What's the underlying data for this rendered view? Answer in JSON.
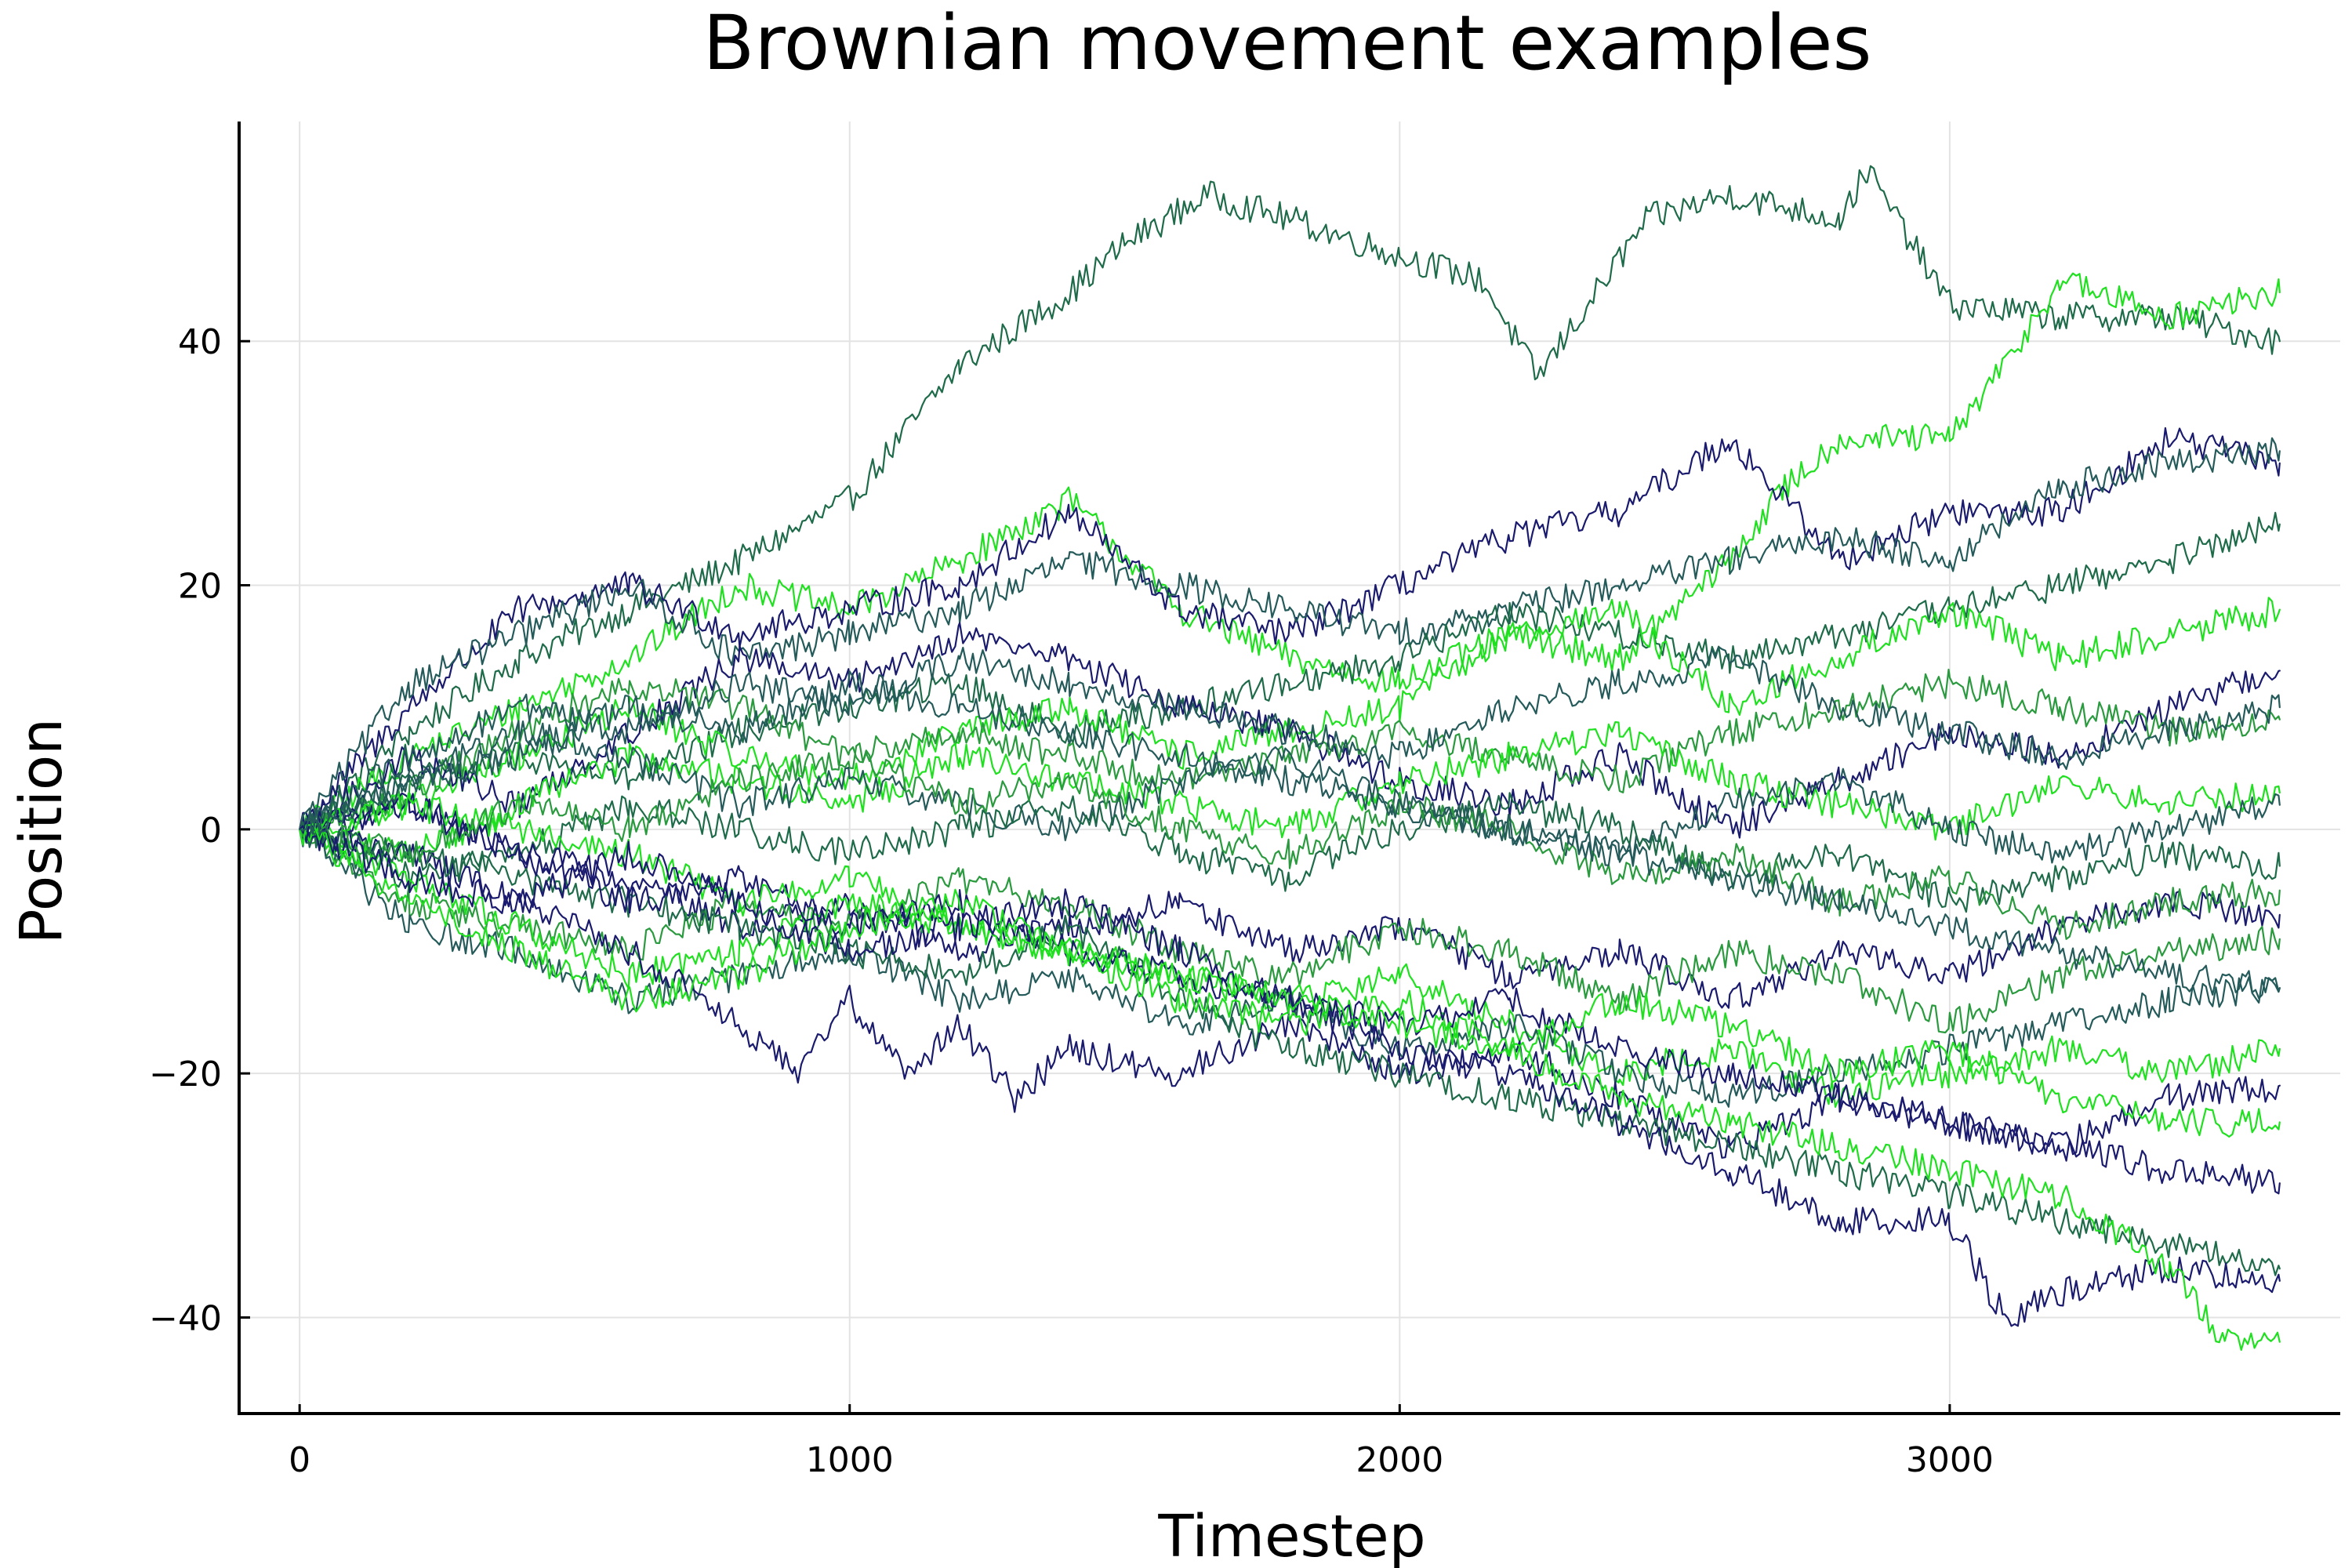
{
  "chart_data": {
    "type": "line",
    "title": "Brownian movement examples",
    "xlabel": "Timestep",
    "ylabel": "Position",
    "xlim": [
      -110,
      3710
    ],
    "ylim": [
      -48,
      58
    ],
    "xticks": [
      0,
      1000,
      2000,
      3000
    ],
    "yticks": [
      -40,
      -20,
      0,
      20,
      40
    ],
    "xtick_labels": [
      "0",
      "1000",
      "2000",
      "3000"
    ],
    "ytick_labels": [
      "−40",
      "−20",
      "0",
      "20",
      "40"
    ],
    "grid": true,
    "legend": "none",
    "colors": {
      "navy": "#1a1a6e",
      "darkgreen": "#1e6b4a",
      "teal": "#245a5a",
      "green": "#2a9a3e",
      "bright": "#1fe01f"
    },
    "series": [
      {
        "color": "#1e6b4a",
        "x": [
          0,
          200,
          400,
          600,
          800,
          1000,
          1200,
          1400,
          1500,
          1650,
          1800,
          2000,
          2150,
          2250,
          2450,
          2600,
          2800,
          2850,
          3000,
          3200,
          3400,
          3600
        ],
        "y": [
          0,
          8,
          14,
          18,
          22,
          27,
          38,
          44,
          48,
          52,
          50,
          47,
          45,
          37,
          50,
          52,
          50,
          54,
          43,
          42,
          42,
          40
        ]
      },
      {
        "color": "#1fe01f",
        "x": [
          0,
          200,
          400,
          600,
          800,
          1000,
          1200,
          1400,
          1600,
          1800,
          2000,
          2200,
          2400,
          2600,
          2700,
          2800,
          3000,
          3100,
          3200,
          3400,
          3600
        ],
        "y": [
          0,
          6,
          10,
          14,
          20,
          18,
          22,
          27,
          18,
          14,
          12,
          16,
          14,
          22,
          28,
          32,
          32,
          38,
          45,
          42,
          44
        ]
      },
      {
        "color": "#1a1a6e",
        "x": [
          0,
          200,
          400,
          600,
          800,
          1000,
          1200,
          1400,
          1600,
          1800,
          2000,
          2200,
          2400,
          2600,
          2800,
          3000,
          3200,
          3400,
          3600
        ],
        "y": [
          0,
          10,
          18,
          20,
          16,
          18,
          20,
          26,
          18,
          16,
          20,
          24,
          26,
          32,
          22,
          26,
          26,
          32,
          30
        ]
      },
      {
        "color": "#245a5a",
        "x": [
          0,
          200,
          400,
          600,
          800,
          1000,
          1200,
          1400,
          1600,
          1800,
          2000,
          2200,
          2400,
          2600,
          2800,
          3000,
          3200,
          3400,
          3600
        ],
        "y": [
          0,
          12,
          16,
          20,
          14,
          16,
          18,
          22,
          20,
          18,
          16,
          18,
          20,
          22,
          24,
          22,
          28,
          30,
          31
        ]
      },
      {
        "color": "#1e6b4a",
        "x": [
          0,
          200,
          400,
          600,
          800,
          1000,
          1200,
          1400,
          1600,
          1800,
          2000,
          2200,
          2400,
          2600,
          2800,
          3000,
          3200,
          3400,
          3600
        ],
        "y": [
          0,
          4,
          6,
          4,
          8,
          10,
          12,
          8,
          10,
          12,
          14,
          18,
          16,
          14,
          16,
          18,
          20,
          22,
          25
        ]
      },
      {
        "color": "#1fe01f",
        "x": [
          0,
          200,
          400,
          600,
          800,
          1000,
          1200,
          1400,
          1600,
          1800,
          2000,
          2200,
          2400,
          2600,
          2800,
          3000,
          3200,
          3400,
          3600
        ],
        "y": [
          0,
          2,
          6,
          10,
          6,
          4,
          8,
          10,
          6,
          8,
          10,
          16,
          18,
          10,
          14,
          18,
          14,
          16,
          18
        ]
      },
      {
        "color": "#1a1a6e",
        "x": [
          0,
          200,
          400,
          600,
          800,
          1000,
          1200,
          1400,
          1600,
          1800,
          2000,
          2200,
          2400,
          2600,
          2800,
          3000,
          3200,
          3400,
          3600
        ],
        "y": [
          0,
          6,
          2,
          8,
          14,
          12,
          16,
          14,
          10,
          8,
          4,
          2,
          6,
          0,
          4,
          8,
          6,
          10,
          13
        ]
      },
      {
        "color": "#2a9a3e",
        "x": [
          0,
          200,
          400,
          600,
          800,
          1000,
          1200,
          1400,
          1600,
          1800,
          2000,
          2200,
          2400,
          2600,
          2800,
          3000,
          3200,
          3400,
          3600
        ],
        "y": [
          0,
          3,
          8,
          12,
          10,
          6,
          8,
          6,
          4,
          6,
          8,
          6,
          4,
          8,
          10,
          12,
          10,
          8,
          9
        ]
      },
      {
        "color": "#1fe01f",
        "x": [
          0,
          200,
          400,
          600,
          800,
          1000,
          1200,
          1400,
          1600,
          1800,
          2000,
          2200,
          2400,
          2600,
          2800,
          3000,
          3200,
          3400,
          3600
        ],
        "y": [
          0,
          -2,
          2,
          6,
          4,
          2,
          6,
          4,
          2,
          0,
          4,
          6,
          8,
          4,
          2,
          0,
          4,
          2,
          3
        ]
      },
      {
        "color": "#245a5a",
        "x": [
          0,
          200,
          400,
          600,
          800,
          1000,
          1200,
          1400,
          1600,
          1800,
          2000,
          2200,
          2400,
          2600,
          2800,
          3000,
          3200,
          3400,
          3600
        ],
        "y": [
          0,
          4,
          8,
          6,
          2,
          4,
          2,
          0,
          4,
          6,
          2,
          0,
          -2,
          2,
          4,
          0,
          -2,
          0,
          2
        ]
      },
      {
        "color": "#1e6b4a",
        "x": [
          0,
          200,
          400,
          600,
          800,
          1000,
          1200,
          1400,
          1600,
          1800,
          2000,
          2200,
          2400,
          2600,
          2800,
          3000,
          3200,
          3400,
          3600
        ],
        "y": [
          0,
          -4,
          -2,
          2,
          0,
          -2,
          0,
          2,
          -2,
          -4,
          0,
          2,
          0,
          -4,
          -2,
          -6,
          -4,
          -2,
          -3
        ]
      },
      {
        "color": "#1a1a6e",
        "x": [
          0,
          200,
          400,
          600,
          800,
          1000,
          1200,
          1400,
          1600,
          1800,
          2000,
          2200,
          2400,
          2600,
          2800,
          3000,
          3200,
          3400,
          3600
        ],
        "y": [
          0,
          2,
          -2,
          -4,
          -8,
          -6,
          -10,
          -8,
          -6,
          -10,
          -8,
          -12,
          -10,
          -14,
          -10,
          -12,
          -8,
          -6,
          -7
        ]
      },
      {
        "color": "#2a9a3e",
        "x": [
          0,
          200,
          400,
          600,
          800,
          1000,
          1200,
          1400,
          1600,
          1800,
          2000,
          2200,
          2400,
          2600,
          2800,
          3000,
          3200,
          3400,
          3600
        ],
        "y": [
          0,
          -6,
          -8,
          -10,
          -6,
          -8,
          -4,
          -6,
          -10,
          -12,
          -8,
          -10,
          -14,
          -10,
          -12,
          -16,
          -12,
          -10,
          -9
        ]
      },
      {
        "color": "#1fe01f",
        "x": [
          0,
          200,
          400,
          600,
          800,
          1000,
          1200,
          1400,
          1600,
          1800,
          2000,
          2200,
          2400,
          2600,
          2800,
          3000,
          3200,
          3400,
          3600
        ],
        "y": [
          0,
          -4,
          -8,
          -12,
          -10,
          -6,
          -8,
          -10,
          -12,
          -14,
          -12,
          -16,
          -20,
          -18,
          -22,
          -20,
          -18,
          -20,
          -18
        ]
      },
      {
        "color": "#245a5a",
        "x": [
          0,
          200,
          400,
          600,
          800,
          1000,
          1200,
          1400,
          1600,
          1800,
          2000,
          2200,
          2400,
          2600,
          2800,
          3000,
          3200,
          3400,
          3600
        ],
        "y": [
          0,
          -8,
          -10,
          -14,
          -12,
          -10,
          -14,
          -12,
          -16,
          -14,
          -18,
          -16,
          -20,
          -22,
          -20,
          -18,
          -16,
          -14,
          -13
        ]
      },
      {
        "color": "#1a1a6e",
        "x": [
          0,
          200,
          400,
          600,
          800,
          900,
          1000,
          1100,
          1200,
          1300,
          1400,
          1600,
          1800,
          2000,
          2200,
          2400,
          2600,
          2800,
          3000,
          3200,
          3400,
          3600
        ],
        "y": [
          0,
          -2,
          -6,
          -10,
          -16,
          -20,
          -14,
          -20,
          -16,
          -22,
          -18,
          -20,
          -16,
          -20,
          -18,
          -22,
          -26,
          -22,
          -24,
          -26,
          -22,
          -21
        ]
      },
      {
        "color": "#1e6b4a",
        "x": [
          0,
          200,
          400,
          600,
          800,
          1000,
          1200,
          1400,
          1600,
          1800,
          2000,
          2200,
          2400,
          2600,
          2800,
          3000,
          3200,
          3400,
          3600
        ],
        "y": [
          0,
          -2,
          -4,
          -6,
          -8,
          -10,
          -12,
          -8,
          -14,
          -18,
          -20,
          -22,
          -24,
          -26,
          -28,
          -30,
          -32,
          -34,
          -36
        ]
      },
      {
        "color": "#1a1a6e",
        "x": [
          0,
          200,
          400,
          600,
          800,
          1000,
          1200,
          1400,
          1600,
          1800,
          2000,
          2200,
          2400,
          2600,
          2800,
          3000,
          3100,
          3200,
          3400,
          3600
        ],
        "y": [
          0,
          2,
          -2,
          -6,
          -4,
          -8,
          -6,
          -10,
          -12,
          -14,
          -18,
          -20,
          -24,
          -28,
          -32,
          -32,
          -40,
          -38,
          -36,
          -37
        ]
      },
      {
        "color": "#1fe01f",
        "x": [
          0,
          200,
          400,
          600,
          800,
          1000,
          1200,
          1400,
          1600,
          1800,
          2000,
          2200,
          2400,
          2600,
          2800,
          3000,
          3200,
          3400,
          3500,
          3600
        ],
        "y": [
          0,
          2,
          0,
          -2,
          -6,
          -4,
          -8,
          -10,
          -14,
          -16,
          -14,
          -18,
          -22,
          -24,
          -26,
          -28,
          -30,
          -36,
          -42,
          -42
        ]
      },
      {
        "color": "#245a5a",
        "x": [
          0,
          200,
          400,
          600,
          800,
          1000,
          1200,
          1400,
          1600,
          1800,
          2000,
          2200,
          2400,
          2600,
          2800,
          3000,
          3200,
          3400,
          3600
        ],
        "y": [
          0,
          6,
          10,
          8,
          12,
          10,
          14,
          12,
          10,
          8,
          6,
          10,
          12,
          14,
          10,
          8,
          6,
          8,
          10
        ]
      },
      {
        "color": "#2a9a3e",
        "x": [
          0,
          200,
          400,
          600,
          800,
          1000,
          1200,
          1400,
          1600,
          1800,
          2000,
          2200,
          2400,
          2600,
          2800,
          3000,
          3200,
          3400,
          3600
        ],
        "y": [
          0,
          -2,
          2,
          0,
          4,
          6,
          2,
          4,
          0,
          -2,
          2,
          0,
          -4,
          -2,
          -6,
          -4,
          -8,
          -6,
          -5
        ]
      },
      {
        "color": "#1a1a6e",
        "x": [
          0,
          200,
          400,
          600,
          800,
          1000,
          1200,
          1400,
          1600,
          1800,
          2000,
          2200,
          2400,
          2600,
          2800,
          3000,
          3200,
          3400,
          3600
        ],
        "y": [
          0,
          -4,
          -6,
          -2,
          -6,
          -10,
          -8,
          -6,
          -10,
          -14,
          -16,
          -14,
          -18,
          -20,
          -22,
          -24,
          -26,
          -28,
          -29
        ]
      },
      {
        "color": "#1fe01f",
        "x": [
          0,
          200,
          400,
          600,
          800,
          1000,
          1200,
          1400,
          1600,
          1800,
          2000,
          2200,
          2400,
          2600,
          2800,
          3000,
          3200,
          3400,
          3600
        ],
        "y": [
          0,
          -6,
          -10,
          -14,
          -12,
          -8,
          -6,
          -10,
          -12,
          -14,
          -16,
          -18,
          -14,
          -16,
          -20,
          -18,
          -22,
          -24,
          -24
        ]
      },
      {
        "color": "#245a5a",
        "x": [
          0,
          200,
          400,
          600,
          800,
          1000,
          1200,
          1400,
          1600,
          1800,
          2000,
          2200,
          2400,
          2600,
          2800,
          3000,
          3200,
          3400,
          3600
        ],
        "y": [
          0,
          4,
          6,
          10,
          8,
          12,
          10,
          8,
          6,
          4,
          2,
          0,
          -2,
          -4,
          -6,
          -8,
          -10,
          -12,
          -13
        ]
      }
    ]
  }
}
